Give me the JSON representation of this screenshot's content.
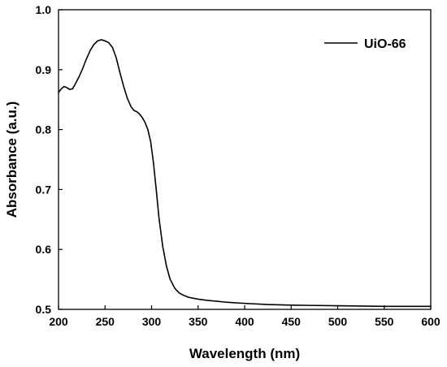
{
  "chart_data": {
    "type": "line",
    "title": "",
    "xlabel": "Wavelength (nm)",
    "ylabel": "Absorbance (a.u.)",
    "xlim": [
      200,
      600
    ],
    "ylim": [
      0.5,
      1.0
    ],
    "xticks": [
      200,
      250,
      300,
      350,
      400,
      450,
      500,
      550,
      600
    ],
    "yticks": [
      0.5,
      0.6,
      0.7,
      0.8,
      0.9,
      1.0
    ],
    "xtick_labels": [
      "200",
      "250",
      "300",
      "350",
      "400",
      "450",
      "500",
      "550",
      "600"
    ],
    "ytick_labels": [
      "0.5",
      "0.6",
      "0.7",
      "0.8",
      "0.9",
      "1.0"
    ],
    "grid": false,
    "legend_position": "top-right",
    "series": [
      {
        "name": "UiO-66",
        "color": "#000000",
        "x": [
          200,
          203,
          206,
          209,
          212,
          215,
          218,
          222,
          226,
          230,
          234,
          238,
          242,
          246,
          250,
          254,
          258,
          262,
          266,
          270,
          274,
          278,
          281,
          284,
          287,
          290,
          293,
          296,
          299,
          302,
          305,
          308,
          312,
          316,
          320,
          325,
          330,
          335,
          340,
          350,
          360,
          380,
          400,
          425,
          450,
          500,
          550,
          600
        ],
        "y": [
          0.862,
          0.868,
          0.872,
          0.87,
          0.867,
          0.868,
          0.876,
          0.888,
          0.902,
          0.918,
          0.932,
          0.942,
          0.948,
          0.95,
          0.948,
          0.945,
          0.937,
          0.92,
          0.895,
          0.872,
          0.852,
          0.838,
          0.832,
          0.83,
          0.826,
          0.82,
          0.812,
          0.8,
          0.78,
          0.745,
          0.7,
          0.652,
          0.605,
          0.572,
          0.55,
          0.535,
          0.527,
          0.523,
          0.52,
          0.517,
          0.515,
          0.512,
          0.51,
          0.508,
          0.507,
          0.506,
          0.505,
          0.505
        ]
      }
    ]
  }
}
